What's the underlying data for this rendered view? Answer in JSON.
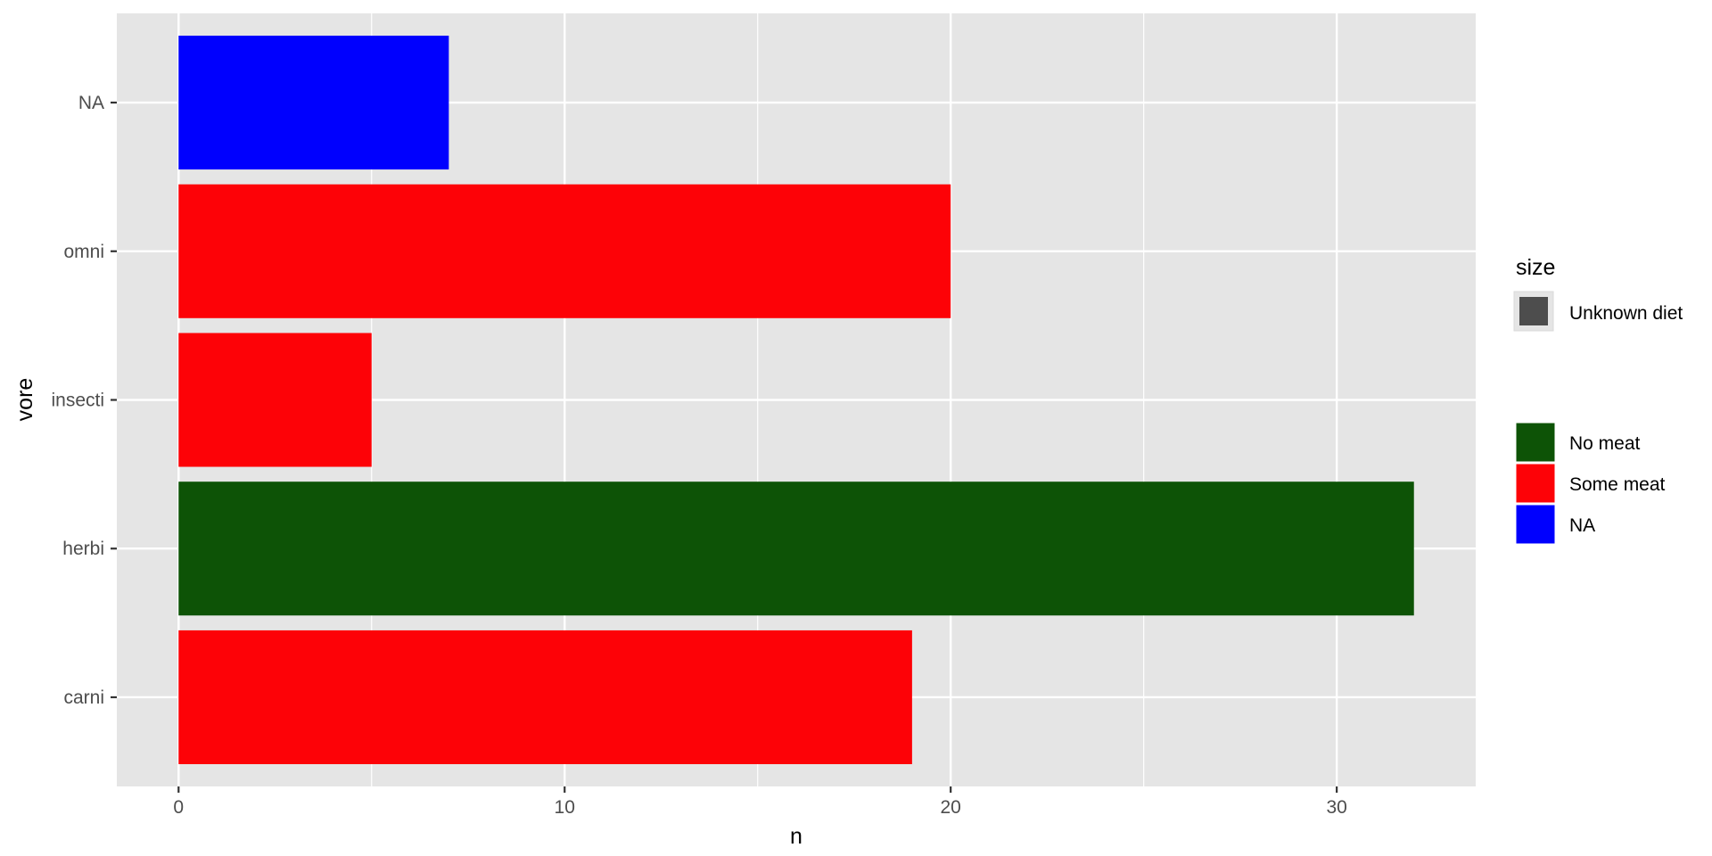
{
  "chart_data": {
    "type": "bar",
    "orientation": "horizontal",
    "categories": [
      "carni",
      "herbi",
      "insecti",
      "omni",
      "NA"
    ],
    "values": [
      19,
      32,
      5,
      20,
      7
    ],
    "groups": [
      "Some meat",
      "No meat",
      "Some meat",
      "Some meat",
      "NA"
    ],
    "xlabel": "n",
    "ylabel": "vore",
    "xlim": [
      -1.6,
      33.6
    ],
    "xticks": [
      0,
      10,
      20,
      30
    ],
    "grid": true,
    "legend_placement": "right",
    "legend": {
      "size_title": "size",
      "size_entries": [
        {
          "label": "Unknown diet",
          "color": "#4d4d4d"
        }
      ],
      "fill_entries": [
        {
          "label": "No meat",
          "color": "#0d5306"
        },
        {
          "label": "Some meat",
          "color": "#fd0207"
        },
        {
          "label": "NA",
          "color": "#0000fe"
        }
      ]
    },
    "colors": {
      "panel": "#e5e5e5",
      "grid": "#ffffff",
      "No meat": "#0d5306",
      "Some meat": "#fd0207",
      "NA": "#0000fe"
    }
  }
}
